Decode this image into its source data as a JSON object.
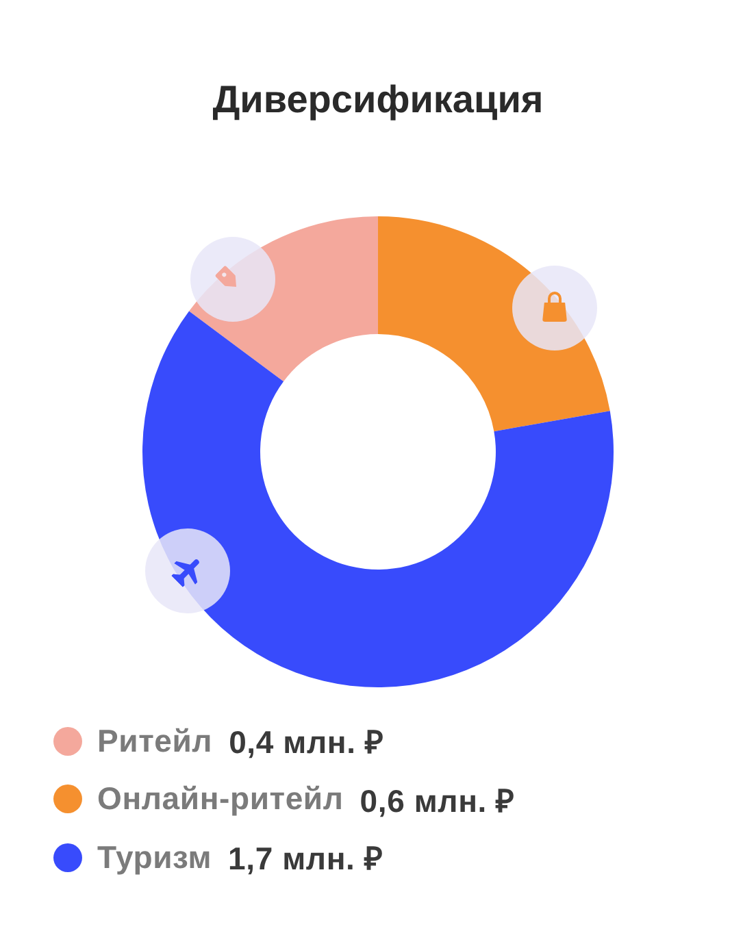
{
  "chart_data": {
    "type": "donut",
    "title": "Диверсификация",
    "categories": [
      "Ритейл",
      "Онлайн-ритейл",
      "Туризм"
    ],
    "values": [
      0.4,
      0.6,
      1.7
    ],
    "value_labels": [
      "0,4 млн. ₽",
      "0,6 млн. ₽",
      "1,7 млн. ₽"
    ],
    "colors": [
      "#f4a89c",
      "#f5902f",
      "#384bfc"
    ],
    "legend": "bottom"
  }
}
